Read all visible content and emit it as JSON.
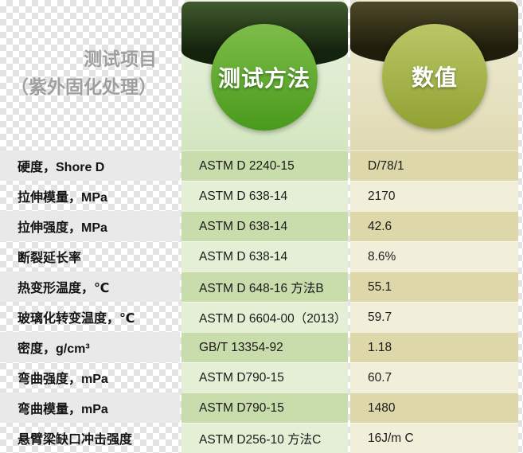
{
  "title": {
    "line1": "测试项目",
    "line2": "（紫外固化处理）"
  },
  "headers": {
    "method": "测试方法",
    "value": "数值"
  },
  "rows": [
    {
      "label": "硬度，Shore D",
      "method": "ASTM D 2240-15",
      "value": "D/78/1"
    },
    {
      "label": "拉伸模量，MPa",
      "method": "ASTM D 638-14",
      "value": "2170"
    },
    {
      "label": "拉伸强度，MPa",
      "method": "ASTM D 638-14",
      "value": "42.6"
    },
    {
      "label": "断裂延长率",
      "method": "ASTM D 638-14",
      "value": "8.6%"
    },
    {
      "label": "热变形温度，℃",
      "method": "ASTM D 648-16 方法B",
      "value": "55.1"
    },
    {
      "label": "玻璃化转变温度，℃",
      "method": "ASTM D 6604-00（2013）",
      "value": "59.7"
    },
    {
      "label": "密度，g/cm³",
      "method": "GB/T 13354-92",
      "value": "1.18"
    },
    {
      "label": "弯曲强度，mPa",
      "method": "ASTM D790-15",
      "value": "60.7"
    },
    {
      "label": "弯曲模量，mPa",
      "method": "ASTM D790-15",
      "value": "1480"
    },
    {
      "label": "悬臂梁缺口冲击强度",
      "method": "ASTM D256-10 方法C",
      "value": "16J/m C"
    }
  ],
  "colors": {
    "checker": "#e3e3e3",
    "col1_band": "#e9e9e9",
    "title_gray": "#9f9f9f",
    "cap_green_top": "#415a2e",
    "cap_green_bottom": "#14230d",
    "circle_green_top": "#7dbd49",
    "circle_green_bottom": "#499a1d",
    "header_green_top": "#edf4e4",
    "header_green_bottom": "#d3e6c0",
    "row_green_dark": "#c9dcab",
    "row_green_light": "#e4efd6",
    "cap_olive_top": "#4d4928",
    "cap_olive_bottom": "#201d0c",
    "circle_olive_top": "#b9c767",
    "circle_olive_bottom": "#92a132",
    "header_tan_top": "#f1eed8",
    "header_tan_bottom": "#e0dab3",
    "row_tan_dark": "#ded7a9",
    "row_tan_light": "#f1eeda",
    "text_dark": "#1b1b1b"
  }
}
